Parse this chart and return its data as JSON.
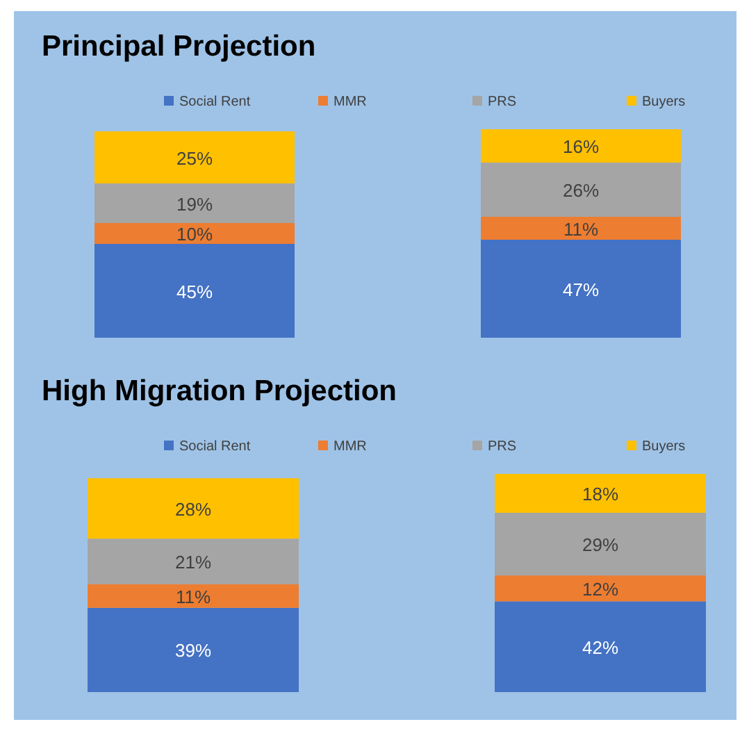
{
  "chart_data": [
    {
      "type": "bar",
      "title": "Principal Projection",
      "stacked": true,
      "legend": "top",
      "categories": [
        null,
        null
      ],
      "series": [
        {
          "name": "Social Rent",
          "color": "#4472c4",
          "values": [
            45,
            47
          ],
          "value_labels": [
            "45%",
            "47%"
          ]
        },
        {
          "name": "MMR",
          "color": "#ed7d31",
          "values": [
            10,
            11
          ],
          "value_labels": [
            "10%",
            "11%"
          ]
        },
        {
          "name": "PRS",
          "color": "#a5a5a5",
          "values": [
            19,
            26
          ],
          "value_labels": [
            "19%",
            "26%"
          ]
        },
        {
          "name": "Buyers",
          "color": "#ffc000",
          "values": [
            25,
            16
          ],
          "value_labels": [
            "25%",
            "16%"
          ]
        }
      ]
    },
    {
      "type": "bar",
      "title": "High Migration Projection",
      "stacked": true,
      "legend": "top",
      "categories": [
        null,
        null
      ],
      "series": [
        {
          "name": "Social Rent",
          "color": "#4472c4",
          "values": [
            39,
            42
          ],
          "value_labels": [
            "39%",
            "42%"
          ]
        },
        {
          "name": "MMR",
          "color": "#ed7d31",
          "values": [
            11,
            12
          ],
          "value_labels": [
            "11%",
            "12%"
          ]
        },
        {
          "name": "PRS",
          "color": "#a5a5a5",
          "values": [
            21,
            29
          ],
          "value_labels": [
            "21%",
            "29%"
          ]
        },
        {
          "name": "Buyers",
          "color": "#ffc000",
          "values": [
            28,
            18
          ],
          "value_labels": [
            "28%",
            "18%"
          ]
        }
      ]
    }
  ]
}
